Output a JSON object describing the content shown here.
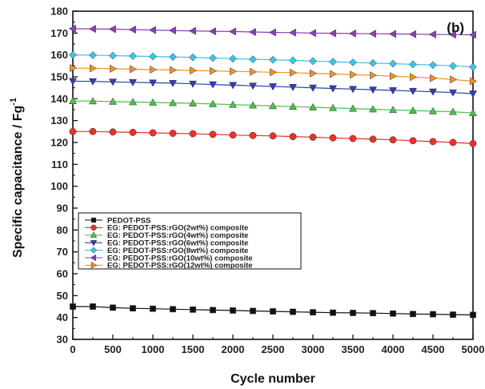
{
  "chart_data": {
    "type": "line",
    "panel_label": "(b)",
    "xlabel": "Cycle number",
    "ylabel_main": "Specific capacitance / Fg",
    "ylabel_sup": "-1",
    "xlim": [
      0,
      5000
    ],
    "ylim": [
      30,
      180
    ],
    "xticks": [
      "0",
      "500",
      "1000",
      "1500",
      "2000",
      "2500",
      "3000",
      "3500",
      "4000",
      "4500",
      "5000"
    ],
    "yticks": [
      "30",
      "40",
      "50",
      "60",
      "70",
      "80",
      "90",
      "100",
      "110",
      "120",
      "130",
      "140",
      "150",
      "160",
      "170",
      "180"
    ],
    "grid": false,
    "legend_position": "center-left",
    "x": [
      0,
      250,
      500,
      750,
      1000,
      1250,
      1500,
      1750,
      2000,
      2250,
      2500,
      2750,
      3000,
      3250,
      3500,
      3750,
      4000,
      4250,
      4500,
      4750,
      5000
    ],
    "series": [
      {
        "name": "PEDOT-PSS",
        "color": "#111111",
        "marker": "square",
        "values": [
          45,
          45,
          44.5,
          44.2,
          44,
          43.8,
          43.6,
          43.4,
          43.2,
          43,
          42.8,
          42.6,
          42.4,
          42.2,
          42.1,
          42,
          41.8,
          41.6,
          41.5,
          41.3,
          41.2
        ]
      },
      {
        "name": "EG: PEDOT-PSS:rGO(2wt%) composite",
        "color": "#e8322a",
        "marker": "circle",
        "values": [
          125,
          125,
          124.8,
          124.6,
          124.4,
          124.2,
          124,
          123.7,
          123.4,
          123.2,
          123,
          122.7,
          122.4,
          122.1,
          121.8,
          121.5,
          121.2,
          120.8,
          120.4,
          120,
          119.5
        ]
      },
      {
        "name": "EG: PEDOT-PSS:rGO(4wt%) composite",
        "color": "#4bc04b",
        "marker": "triangle-up",
        "values": [
          139,
          138.9,
          138.7,
          138.5,
          138.3,
          138.1,
          137.9,
          137.6,
          137.3,
          137,
          136.7,
          136.4,
          136.1,
          135.8,
          135.5,
          135.2,
          134.9,
          134.6,
          134.3,
          134,
          133.5
        ]
      },
      {
        "name": "EG: PEDOT-PSS:rGO(6wt%) composite",
        "color": "#2f3fb0",
        "marker": "triangle-down",
        "values": [
          148,
          147.9,
          147.7,
          147.5,
          147.3,
          147.1,
          146.8,
          146.5,
          146.2,
          145.9,
          145.6,
          145.3,
          145,
          144.7,
          144.4,
          144.1,
          143.8,
          143.5,
          143.2,
          142.8,
          142.3
        ]
      },
      {
        "name": "EG: PEDOT-PSS:rGO(8wt%) composite",
        "color": "#3cc4e8",
        "marker": "diamond",
        "values": [
          160,
          159.9,
          159.7,
          159.5,
          159.3,
          159.1,
          158.9,
          158.6,
          158.3,
          158,
          157.8,
          157.5,
          157.2,
          156.9,
          156.6,
          156.3,
          156,
          155.7,
          155.4,
          155,
          154.5
        ]
      },
      {
        "name": "EG: PEDOT-PSS:rGO(10wt%) composite",
        "color": "#8a3fb5",
        "marker": "triangle-left",
        "values": [
          172,
          171.9,
          171.8,
          171.6,
          171.4,
          171.2,
          171,
          170.8,
          170.7,
          170.5,
          170.3,
          170.2,
          170,
          169.9,
          169.8,
          169.7,
          169.6,
          169.5,
          169.4,
          169.3,
          169.2
        ]
      },
      {
        "name": "EG: PEDOT-PSS:rGO(12wt%) composite",
        "color": "#f0922a",
        "marker": "triangle-right",
        "values": [
          154,
          153.9,
          153.7,
          153.5,
          153.3,
          153.1,
          152.9,
          152.7,
          152.5,
          152.3,
          152.1,
          151.9,
          151.6,
          151.3,
          151,
          150.7,
          150.3,
          149.9,
          149.4,
          148.8,
          148
        ]
      }
    ]
  }
}
